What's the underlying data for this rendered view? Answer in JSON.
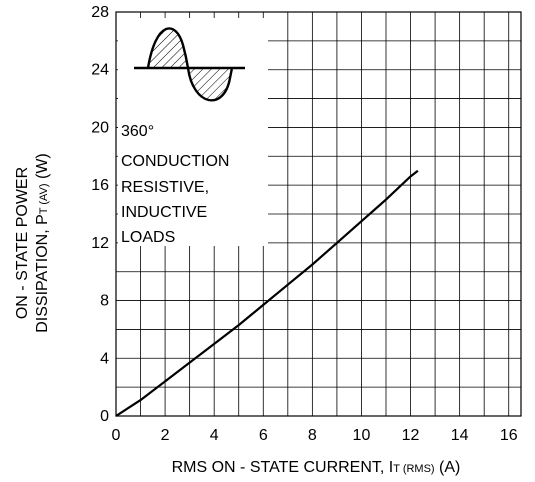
{
  "chart_data": {
    "type": "line",
    "x_ticks": [
      "0",
      "2",
      "4",
      "6",
      "8",
      "10",
      "12",
      "14",
      "16"
    ],
    "y_ticks": [
      "0",
      "4",
      "8",
      "12",
      "16",
      "20",
      "24",
      "28"
    ],
    "xlim": [
      0,
      16.5
    ],
    "ylim": [
      0,
      28
    ],
    "grid": true,
    "xlabel": {
      "main": "RMS ON - STATE CURRENT, I",
      "sub": "T (RMS)",
      "unit": " (A)"
    },
    "ylabel": {
      "line1": "ON - STATE POWER",
      "line2_main": "DISSIPATION, P",
      "line2_sub": "T (AV)",
      "line2_unit": " (W)"
    },
    "annotation": [
      "360°",
      "CONDUCTION",
      "RESISTIVE,",
      "INDUCTIVE",
      "LOADS"
    ],
    "series": [
      {
        "x": [
          0,
          1,
          2,
          3,
          4,
          5,
          6,
          7,
          8,
          9,
          10,
          11,
          12,
          12.3
        ],
        "y": [
          0,
          1.1,
          2.4,
          3.7,
          5.0,
          6.3,
          7.7,
          9.1,
          10.5,
          12.0,
          13.5,
          15.0,
          16.6,
          17.0
        ]
      }
    ]
  }
}
